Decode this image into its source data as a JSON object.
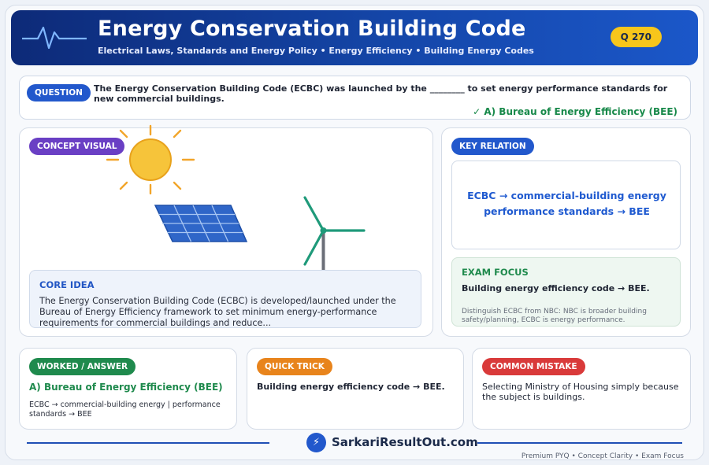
{
  "header": {
    "title": "Energy Conservation Building Code",
    "subtitle": "Electrical Laws, Standards and Energy Policy  •  Energy Efficiency  •  Building Energy Codes",
    "badge": "Q 270"
  },
  "question": {
    "label": "QUESTION",
    "text": "The Energy Conservation Building Code (ECBC) was launched by the ________ to set energy performance standards for new commercial buildings.",
    "answer": "✓ A) Bureau of Energy Efficiency (BEE)"
  },
  "concept": {
    "label": "CONCEPT VISUAL",
    "core_title": "CORE IDEA",
    "core_text": "The Energy Conservation Building Code (ECBC) is developed/launched under the Bureau of Energy Efficiency framework to set minimum energy-performance requirements for commercial buildings and reduce..."
  },
  "key_relation": {
    "label": "KEY RELATION",
    "text": "ECBC → commercial-building energy performance standards → BEE"
  },
  "exam_focus": {
    "title": "EXAM FOCUS",
    "text": "Building energy efficiency code → BEE.",
    "note": "Distinguish ECBC from NBC: NBC is broader building safety/planning, ECBC is energy performance."
  },
  "worked": {
    "label": "WORKED / ANSWER",
    "answer": "A) Bureau of Energy Efficiency (BEE)",
    "detail": "ECBC → commercial-building energy | performance standards → BEE"
  },
  "trick": {
    "label": "QUICK TRICK",
    "text": "Building energy efficiency code → BEE."
  },
  "mistake": {
    "label": "COMMON MISTAKE",
    "text": "Selecting Ministry of Housing simply because the subject is buildings."
  },
  "footer": {
    "brand": "SarkariResultOut.com",
    "logo_glyph": "⚡",
    "tagline": "Premium PYQ • Concept Clarity • Exam Focus"
  },
  "colors": {
    "header_dark": "#0d2a78",
    "accent_blue": "#2256c4",
    "accent_green": "#1f8a4d",
    "badge_yellow": "#f7c61b",
    "concept_purple": "#6a3fc4",
    "trick_orange": "#e8841c",
    "mistake_red": "#d93a3a"
  },
  "icons": [
    "pulse-icon",
    "sun-icon",
    "solar-panel-icon",
    "wind-turbine-icon",
    "lightning-icon"
  ]
}
